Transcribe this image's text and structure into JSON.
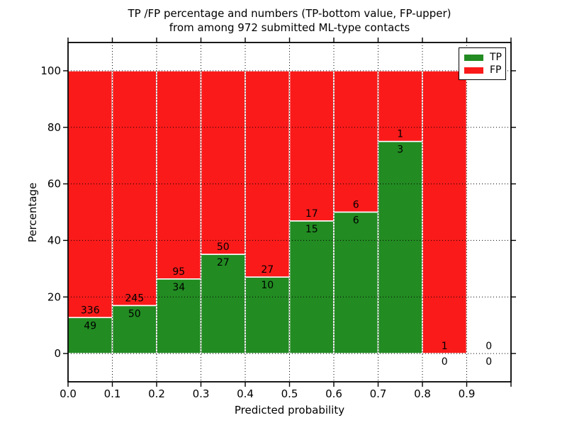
{
  "figure": {
    "title_line1": "TP /FP percentage and numbers (TP-bottom value, FP-upper)",
    "title_line2": "from among 972 submitted ML-type contacts",
    "background_color": "#ffffff"
  },
  "chart_data": {
    "type": "bar",
    "stacked": true,
    "normalized": "each bin stacked to 100%",
    "title": "TP /FP percentage and numbers (TP-bottom value, FP-upper) from among 972 submitted ML-type contacts",
    "xlabel": "Predicted probability",
    "ylabel": "Percentage",
    "total_contacts": 972,
    "bin_width": 0.1,
    "bin_starts": [
      0.0,
      0.1,
      0.2,
      0.3,
      0.4,
      0.5,
      0.6,
      0.7,
      0.8,
      0.9
    ],
    "categories": [
      "0.0-0.1",
      "0.1-0.2",
      "0.2-0.3",
      "0.3-0.4",
      "0.4-0.5",
      "0.5-0.6",
      "0.6-0.7",
      "0.7-0.8",
      "0.8-0.9",
      "0.9-1.0"
    ],
    "series": [
      {
        "name": "TP",
        "color": "#228b22",
        "counts": [
          49,
          50,
          34,
          27,
          10,
          15,
          6,
          3,
          0,
          0
        ]
      },
      {
        "name": "FP",
        "color": "#fa1a1a",
        "counts": [
          336,
          245,
          95,
          50,
          27,
          17,
          6,
          1,
          1,
          0
        ]
      }
    ],
    "tp_percent_of_bin": [
      12.7,
      16.9,
      26.4,
      35.1,
      27.0,
      46.9,
      50.0,
      75.0,
      0.0,
      null
    ],
    "xlim": [
      0.0,
      1.0
    ],
    "ylim": [
      -10,
      110
    ],
    "yticks": [
      0,
      20,
      40,
      60,
      80,
      100
    ],
    "xtick_labels": [
      "0.0",
      "0.1",
      "0.2",
      "0.3",
      "0.4",
      "0.5",
      "0.6",
      "0.7",
      "0.8",
      "0.9"
    ],
    "grid": {
      "show": true,
      "line_style": "dotted",
      "color": "#000000"
    },
    "bar_edge_color": "#ffffff",
    "legend": {
      "position": "upper right",
      "items": [
        "TP",
        "FP"
      ]
    }
  },
  "legend": {
    "tp_label": "TP",
    "fp_label": "FP"
  }
}
